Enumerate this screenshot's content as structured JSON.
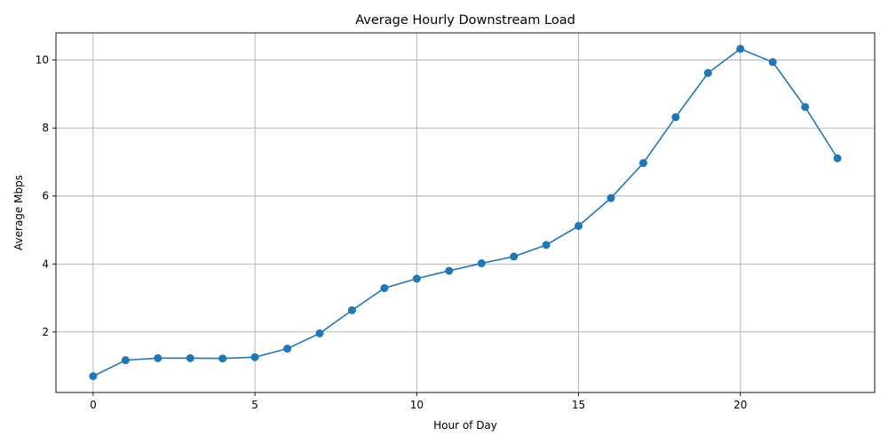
{
  "chart_data": {
    "type": "line",
    "title": "Average Hourly Downstream Load",
    "xlabel": "Hour of Day",
    "ylabel": "Average Mbps",
    "xlim": [
      -1.15,
      24.15
    ],
    "ylim": [
      0.22,
      10.8
    ],
    "xticks": [
      0,
      5,
      10,
      15,
      20
    ],
    "yticks": [
      2,
      4,
      6,
      8,
      10
    ],
    "grid": true,
    "color": "#1f77b4",
    "marker": "circle",
    "series": [
      {
        "x": [
          0,
          1,
          2,
          3,
          4,
          5,
          6,
          7,
          8,
          9,
          10,
          11,
          12,
          13,
          14,
          15,
          16,
          17,
          18,
          19,
          20,
          21,
          22,
          23
        ],
        "values": [
          0.7,
          1.17,
          1.23,
          1.23,
          1.22,
          1.26,
          1.51,
          1.96,
          2.64,
          3.29,
          3.57,
          3.8,
          4.02,
          4.22,
          4.56,
          5.12,
          5.94,
          6.97,
          8.32,
          9.62,
          10.33,
          9.94,
          8.62,
          7.11
        ]
      }
    ]
  }
}
